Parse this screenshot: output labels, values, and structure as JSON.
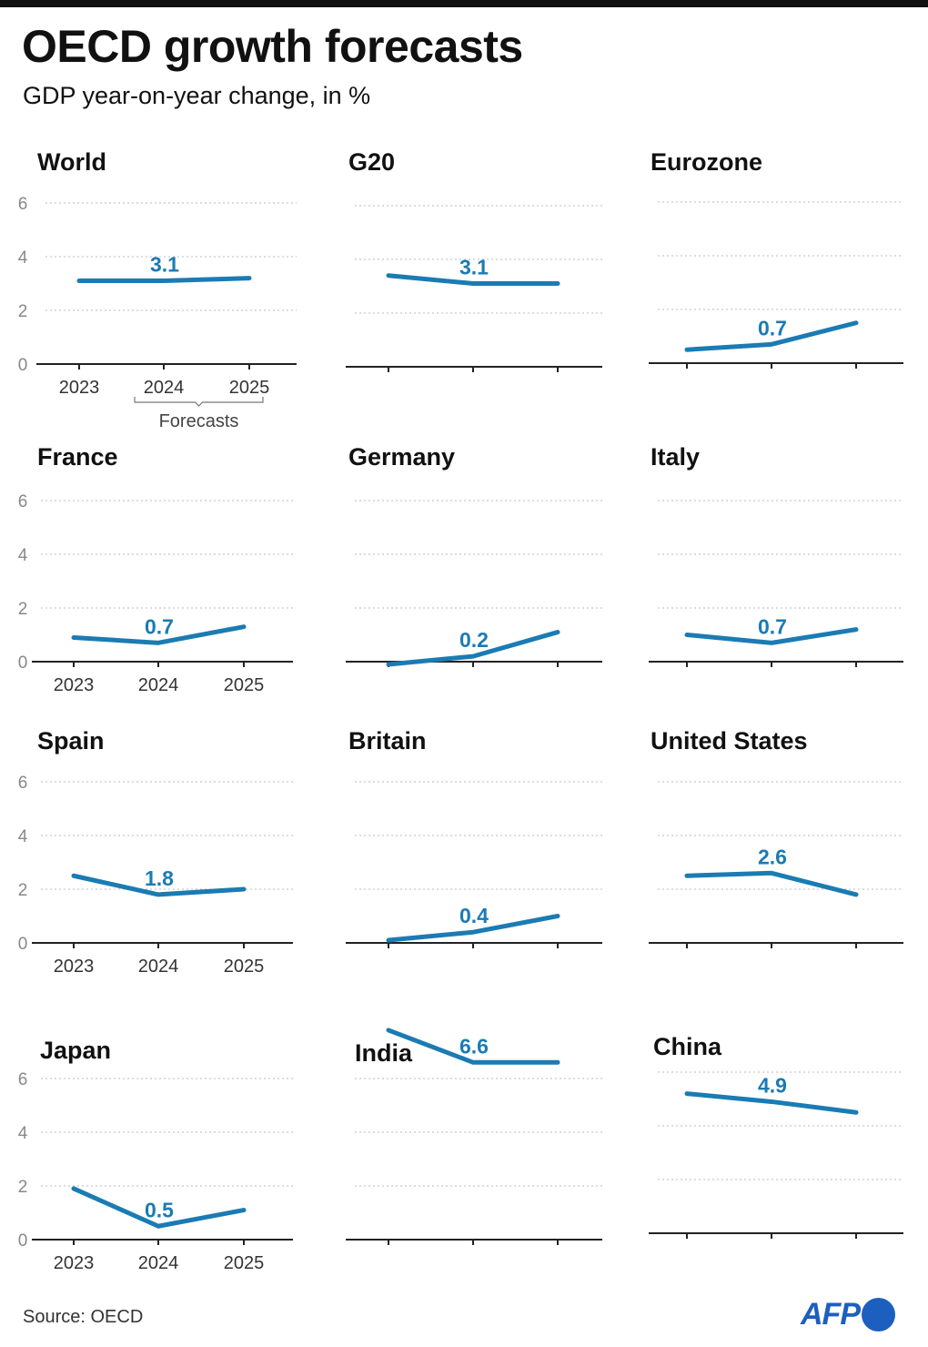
{
  "header": {
    "title": "OECD growth forecasts",
    "subtitle": "GDP year-on-year change, in %"
  },
  "footer": {
    "source": "Source: OECD",
    "logo": "AFP"
  },
  "colors": {
    "line": "#1b7bb3",
    "label": "#1b7bb3",
    "grid": "#bbbbbb",
    "axis": "#222222",
    "tick_label": "#888888"
  },
  "chart_data": {
    "type": "line",
    "layout": "small-multiples",
    "x": [
      "2023",
      "2024",
      "2025"
    ],
    "forecast_label": "Forecasts",
    "forecast_years": [
      "2024",
      "2025"
    ],
    "ylim": [
      0,
      6
    ],
    "yticks": [
      0,
      2,
      4,
      6
    ],
    "grid": true,
    "highlighted_point": "2024",
    "panels": [
      {
        "name": "World",
        "values": [
          3.1,
          3.1,
          3.2
        ],
        "label": "3.1"
      },
      {
        "name": "G20",
        "values": [
          3.4,
          3.1,
          3.1
        ],
        "label": "3.1"
      },
      {
        "name": "Eurozone",
        "values": [
          0.5,
          0.7,
          1.5
        ],
        "label": "0.7"
      },
      {
        "name": "France",
        "values": [
          0.9,
          0.7,
          1.3
        ],
        "label": "0.7"
      },
      {
        "name": "Germany",
        "values": [
          -0.1,
          0.2,
          1.1
        ],
        "label": "0.2"
      },
      {
        "name": "Italy",
        "values": [
          1.0,
          0.7,
          1.2
        ],
        "label": "0.7"
      },
      {
        "name": "Spain",
        "values": [
          2.5,
          1.8,
          2.0
        ],
        "label": "1.8"
      },
      {
        "name": "Britain",
        "values": [
          0.1,
          0.4,
          1.0
        ],
        "label": "0.4"
      },
      {
        "name": "United States",
        "values": [
          2.5,
          2.6,
          1.8
        ],
        "label": "2.6"
      },
      {
        "name": "Japan",
        "values": [
          1.9,
          0.5,
          1.1
        ],
        "label": "0.5"
      },
      {
        "name": "India",
        "values": [
          7.8,
          6.6,
          6.6
        ],
        "label": "6.6"
      },
      {
        "name": "China",
        "values": [
          5.2,
          4.9,
          4.5
        ],
        "label": "4.9"
      }
    ]
  }
}
